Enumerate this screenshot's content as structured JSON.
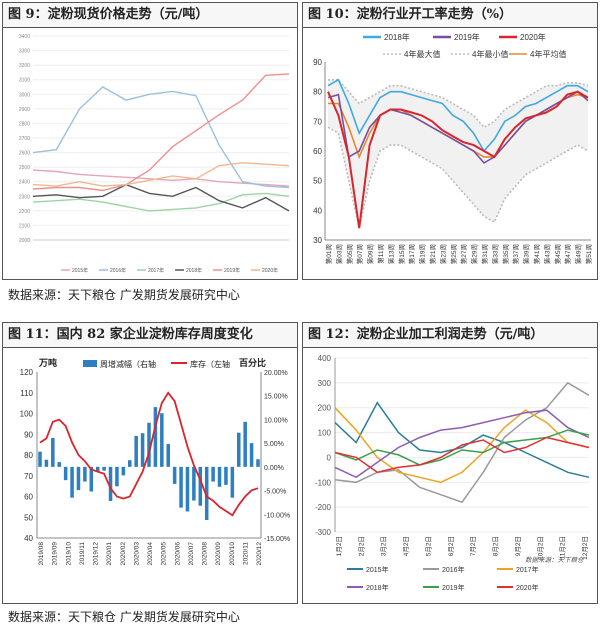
{
  "source_text": "数据来源：天下粮仓  广发期货发展研究中心",
  "chart_data": [
    {
      "type": "line",
      "title": "图 9：淀粉现货价格走势（元/吨）",
      "ylim": [
        2000,
        3400
      ],
      "yticks": [
        2000,
        2100,
        2200,
        2300,
        2400,
        2500,
        2600,
        2700,
        2800,
        2900,
        3000,
        3100,
        3200,
        3300,
        3400
      ],
      "x": [
        0,
        5,
        10,
        15,
        20,
        25,
        30,
        35,
        40,
        45,
        50,
        52
      ],
      "series": [
        {
          "name": "2015年",
          "color": "#e6a5b6",
          "values": [
            2480,
            2470,
            2450,
            2440,
            2430,
            2420,
            2410,
            2420,
            2400,
            2390,
            2380,
            2370
          ]
        },
        {
          "name": "2016年",
          "color": "#9dbfdf",
          "values": [
            2600,
            2620,
            2900,
            3050,
            2960,
            3000,
            3020,
            2990,
            2650,
            2400,
            2370,
            2360
          ]
        },
        {
          "name": "2017年",
          "color": "#9fd3a3",
          "values": [
            2260,
            2270,
            2280,
            2260,
            2230,
            2200,
            2210,
            2220,
            2250,
            2310,
            2320,
            2300
          ]
        },
        {
          "name": "2018年",
          "color": "#555555",
          "values": [
            2300,
            2310,
            2290,
            2300,
            2380,
            2320,
            2300,
            2360,
            2270,
            2220,
            2290,
            2200
          ]
        },
        {
          "name": "2019年",
          "color": "#f08f8f",
          "values": [
            2350,
            2360,
            2360,
            2340,
            2380,
            2480,
            2640,
            2750,
            2860,
            2960,
            3130,
            3140
          ]
        },
        {
          "name": "2020年",
          "color": "#f0b88f",
          "values": [
            2380,
            2370,
            2400,
            2370,
            2380,
            2410,
            2440,
            2420,
            2510,
            2530,
            2520,
            2510
          ]
        }
      ]
    },
    {
      "type": "line",
      "title": "图 10：淀粉行业开工率走势（%）",
      "ylim": [
        30,
        90
      ],
      "yticks": [
        30,
        40,
        50,
        60,
        70,
        80,
        90
      ],
      "xticks": [
        "第01周",
        "第03周",
        "第05周",
        "第07周",
        "第09周",
        "第11周",
        "第13周",
        "第15周",
        "第17周",
        "第19周",
        "第21周",
        "第23周",
        "第25周",
        "第27周",
        "第29周",
        "第31周",
        "第33周",
        "第35周",
        "第37周",
        "第39周",
        "第41周",
        "第43周",
        "第45周",
        "第47周",
        "第49周",
        "第51周"
      ],
      "legend": [
        "2018年",
        "2019年",
        "2020年",
        "4年最大值",
        "4年最小值",
        "4年平均值"
      ],
      "series": [
        {
          "name": "2018年",
          "color": "#3fa9e0",
          "values": [
            82,
            84,
            76,
            66,
            72,
            78,
            80,
            80,
            79,
            78,
            77,
            76,
            72,
            70,
            66,
            60,
            64,
            70,
            72,
            75,
            76,
            78,
            80,
            82,
            82,
            80
          ]
        },
        {
          "name": "2019年",
          "color": "#7b4fa0",
          "values": [
            78,
            79,
            58,
            60,
            68,
            72,
            74,
            73,
            72,
            70,
            68,
            66,
            64,
            62,
            60,
            56,
            58,
            62,
            66,
            70,
            72,
            74,
            76,
            78,
            80,
            77
          ]
        },
        {
          "name": "2020年",
          "color": "#d9252b",
          "values": [
            80,
            72,
            58,
            34,
            62,
            72,
            74,
            74,
            73,
            72,
            70,
            67,
            65,
            63,
            62,
            60,
            58,
            64,
            68,
            71,
            72,
            73,
            75,
            79,
            80,
            78
          ]
        },
        {
          "name": "4年最大值",
          "color": "#bbbbbb",
          "values": [
            84,
            84,
            80,
            76,
            78,
            80,
            82,
            82,
            81,
            80,
            79,
            78,
            76,
            74,
            72,
            68,
            70,
            74,
            76,
            78,
            80,
            82,
            82,
            83,
            83,
            82
          ]
        },
        {
          "name": "4年最小值",
          "color": "#bbbbbb",
          "values": [
            68,
            66,
            50,
            34,
            50,
            60,
            62,
            62,
            60,
            58,
            56,
            54,
            50,
            46,
            42,
            38,
            36,
            44,
            48,
            52,
            54,
            56,
            58,
            60,
            62,
            60
          ]
        },
        {
          "name": "4年平均值",
          "color": "#e38b2f",
          "values": [
            76,
            76,
            68,
            58,
            66,
            72,
            74,
            74,
            72,
            70,
            68,
            66,
            64,
            62,
            60,
            58,
            58,
            62,
            66,
            70,
            72,
            74,
            76,
            78,
            79,
            78
          ]
        }
      ]
    },
    {
      "type": "bar",
      "title": "图 11：国内 82 家企业淀粉库存周度变化",
      "left_unit": "万吨",
      "right_unit": "百分比",
      "ylim": [
        40,
        120
      ],
      "yticks": [
        40,
        50,
        60,
        70,
        80,
        90,
        100,
        110,
        120
      ],
      "y2lim": [
        -15,
        20
      ],
      "y2ticks": [
        "-15.00%",
        "-10.00%",
        "-5.00%",
        "0.00%",
        "5.00%",
        "10.00%",
        "15.00%",
        "20.00%"
      ],
      "xticks": [
        "2019/08",
        "2019/09",
        "2019/10",
        "2019/11",
        "2019/12",
        "2020/01",
        "2020/02",
        "2020/03",
        "2020/04",
        "2020/05",
        "2020/06",
        "2020/07",
        "2020/08",
        "2020/09",
        "2020/10",
        "2020/11",
        "2020/12"
      ],
      "legend": [
        "周增减幅（右轴",
        "库存（左轴"
      ],
      "bar_color": "#2d7fc1",
      "line_color": "#d9252b",
      "inventory": [
        86,
        88,
        96,
        97,
        94,
        86,
        80,
        77,
        73,
        72,
        71,
        64,
        60,
        59,
        60,
        66,
        72,
        81,
        94,
        105,
        110,
        106,
        95,
        84,
        75,
        68,
        60,
        58,
        55,
        53,
        51,
        56,
        60,
        63,
        64
      ],
      "change_pct": [
        3.2,
        1.5,
        6.1,
        1.0,
        -2.8,
        -6.5,
        -4.9,
        -3.1,
        -5.2,
        -1.0,
        -0.8,
        -7.2,
        -4.1,
        -1.8,
        1.4,
        6.5,
        7.1,
        9.3,
        12.6,
        11.3,
        4.8,
        -3.6,
        -8.6,
        -9.4,
        -7.1,
        -8.2,
        -11.2,
        -3.1,
        -4.2,
        -3.8,
        -6.5,
        7.2,
        9.5,
        5.0,
        1.6
      ]
    },
    {
      "type": "line",
      "title": "图 12：淀粉企业加工利润走势（元/吨）",
      "ylim": [
        -300,
        400
      ],
      "yticks": [
        -300,
        -200,
        -100,
        0,
        100,
        200,
        300,
        400
      ],
      "xticks": [
        "1月2日",
        "2月2日",
        "3月2日",
        "4月2日",
        "5月2日",
        "6月2日",
        "7月2日",
        "8月2日",
        "9月2日",
        "10月2日",
        "11月2日",
        "12月2日"
      ],
      "annotation": "数据来源：天下粮仓",
      "series": [
        {
          "name": "2015年",
          "color": "#2a7f97",
          "values": [
            140,
            60,
            220,
            100,
            30,
            20,
            40,
            90,
            60,
            20,
            -20,
            -60,
            -80
          ]
        },
        {
          "name": "2016年",
          "color": "#9a9a9a",
          "values": [
            -90,
            -100,
            -60,
            -50,
            -120,
            -150,
            -180,
            -60,
            80,
            150,
            200,
            300,
            250
          ]
        },
        {
          "name": "2017年",
          "color": "#f0a21f",
          "values": [
            200,
            110,
            0,
            -60,
            -80,
            -100,
            -60,
            20,
            120,
            190,
            140,
            60,
            40
          ]
        },
        {
          "name": "2018年",
          "color": "#8e5bb0",
          "values": [
            -40,
            -80,
            -20,
            40,
            80,
            110,
            120,
            140,
            160,
            180,
            190,
            120,
            80
          ]
        },
        {
          "name": "2019年",
          "color": "#3aa04a",
          "values": [
            20,
            -10,
            30,
            10,
            -30,
            -10,
            30,
            20,
            60,
            70,
            80,
            110,
            90
          ]
        },
        {
          "name": "2020年",
          "color": "#e03030",
          "values": [
            20,
            0,
            -60,
            -40,
            -30,
            0,
            50,
            70,
            20,
            40,
            80,
            60,
            40
          ]
        }
      ]
    }
  ]
}
